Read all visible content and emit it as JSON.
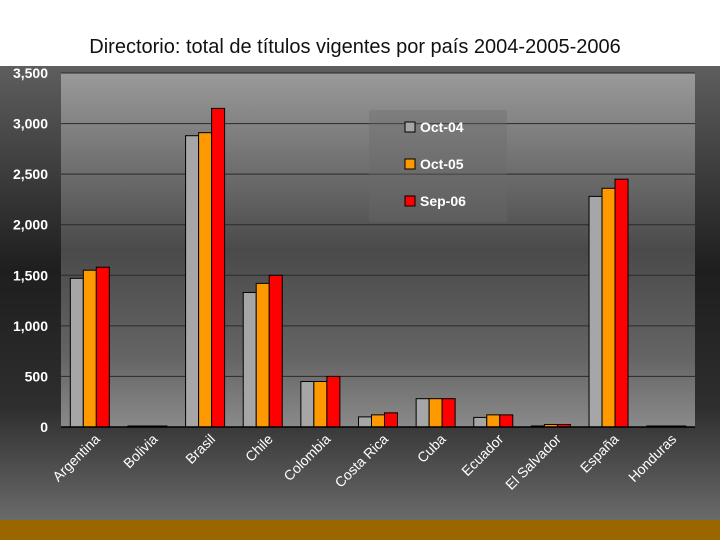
{
  "chart_data": {
    "type": "bar",
    "title": "Directorio: total de títulos vigentes por país 2004-2005-2006",
    "xlabel": "",
    "ylabel": "",
    "ylim": [
      0,
      3500
    ],
    "yticks": [
      "3,500",
      "3,000",
      "2,500",
      "2,000",
      "1,500",
      "1,000",
      "500",
      "0"
    ],
    "ytick_values": [
      3500,
      3000,
      2500,
      2000,
      1500,
      1000,
      500,
      0
    ],
    "grid": true,
    "legend_position": "top-right",
    "categories": [
      "Argentina",
      "Bolivia",
      "Brasil",
      "Chile",
      "Colombia",
      "Costa Rica",
      "Cuba",
      "Ecuador",
      "El Salvador",
      "España",
      "Honduras"
    ],
    "series": [
      {
        "name": "Oct-04",
        "color": "#a6a6a6",
        "values": [
          1470,
          10,
          2880,
          1330,
          450,
          100,
          280,
          95,
          10,
          2280,
          10
        ]
      },
      {
        "name": "Oct-05",
        "color": "#ff9900",
        "values": [
          1550,
          10,
          2910,
          1420,
          450,
          120,
          280,
          120,
          25,
          2360,
          10
        ]
      },
      {
        "name": "Sep-06",
        "color": "#ff0000",
        "values": [
          1580,
          10,
          3150,
          1500,
          500,
          140,
          280,
          120,
          25,
          2450,
          10
        ]
      }
    ]
  }
}
